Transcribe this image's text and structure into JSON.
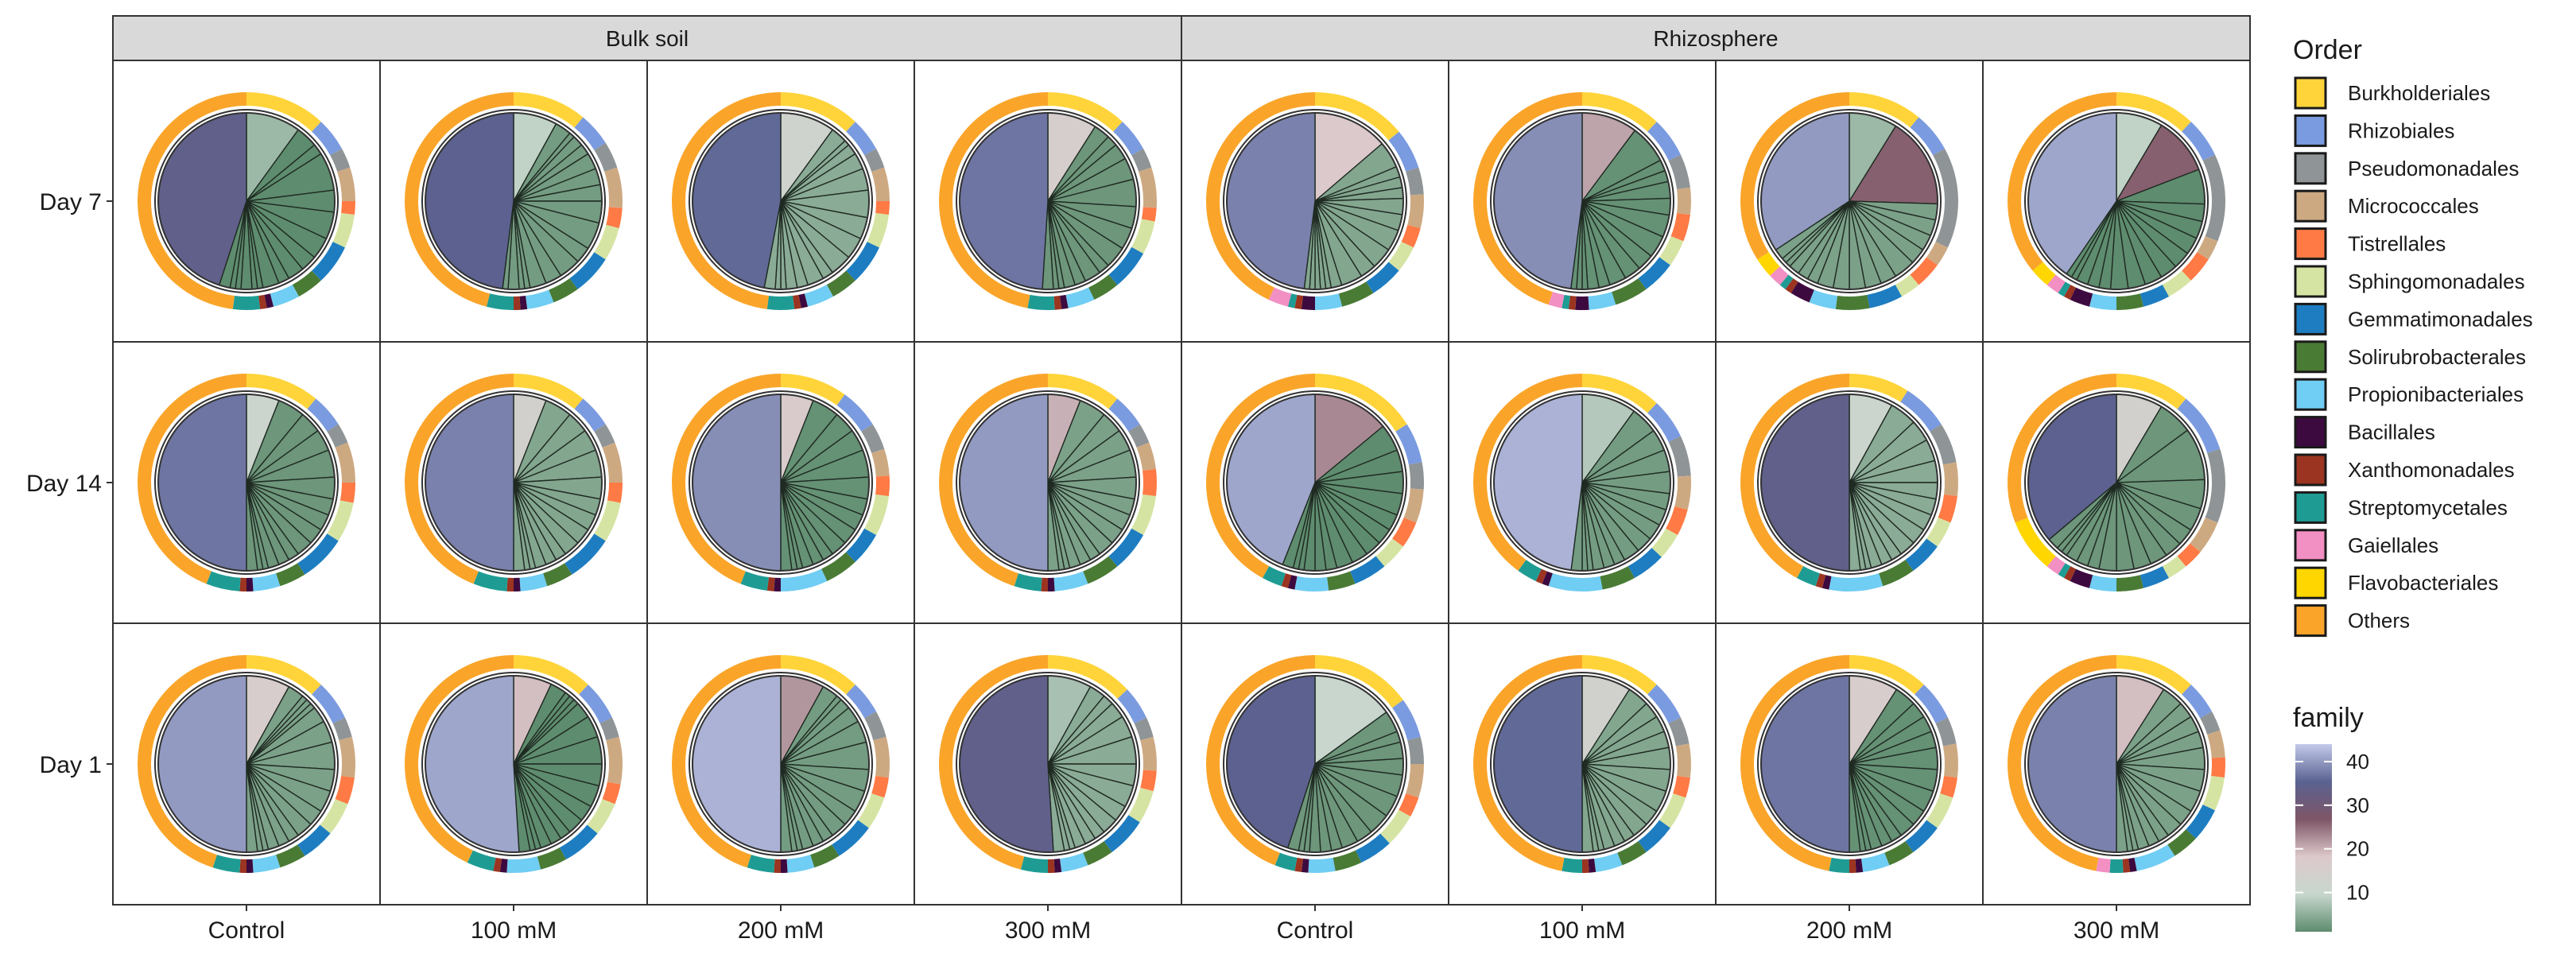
{
  "chart_data": {
    "type": "pie",
    "facets": {
      "columns": [
        "Control",
        "100 mM",
        "200 mM",
        "300 mM",
        "Control",
        "100 mM",
        "200 mM",
        "300 mM"
      ],
      "column_groups": [
        {
          "label": "Bulk soil",
          "span": 4
        },
        {
          "label": "Rhizosphere",
          "span": 4
        }
      ],
      "rows": [
        "Day 7",
        "Day 14",
        "Day 1"
      ]
    },
    "order_legend": {
      "title": "Order",
      "items": [
        {
          "label": "Burkholderiales",
          "color": "#FFD43A"
        },
        {
          "label": "Rhizobiales",
          "color": "#7B9BE0"
        },
        {
          "label": "Pseudomonadales",
          "color": "#8F9496"
        },
        {
          "label": "Micrococcales",
          "color": "#CDA982"
        },
        {
          "label": "Tistrellales",
          "color": "#FF7A45"
        },
        {
          "label": "Sphingomonadales",
          "color": "#D6E4A3"
        },
        {
          "label": "Gemmatimonadales",
          "color": "#1E7DC1"
        },
        {
          "label": "Solirubrobacterales",
          "color": "#4A7B35"
        },
        {
          "label": "Propionibacteriales",
          "color": "#70CDF3"
        },
        {
          "label": "Bacillales",
          "color": "#3D0A3F"
        },
        {
          "label": "Xanthomonadales",
          "color": "#9B3420"
        },
        {
          "label": "Streptomycetales",
          "color": "#1E9C94"
        },
        {
          "label": "Gaiellales",
          "color": "#F28FC3"
        },
        {
          "label": "Flavobacteriales",
          "color": "#FFD600"
        },
        {
          "label": "Others",
          "color": "#FAA52A"
        }
      ]
    },
    "family_scale": {
      "title": "family",
      "ticks": [
        40,
        30,
        20,
        10
      ],
      "range": [
        1,
        44
      ],
      "colors": [
        "#5E8C6E",
        "#C8D7CE",
        "#DCC9CB",
        "#7E5566",
        "#5A6291",
        "#C3CAEA"
      ]
    },
    "panels": [
      {
        "row": 0,
        "col": 0,
        "outer": [
          12,
          5,
          3,
          5,
          2,
          5,
          6,
          4,
          4,
          1,
          1,
          4,
          48
        ],
        "inner": [
          10,
          4,
          2,
          7,
          4,
          5,
          4,
          3,
          3,
          2,
          3,
          1,
          1,
          2,
          1,
          1,
          2,
          45
        ]
      },
      {
        "row": 0,
        "col": 1,
        "outer": [
          11,
          5,
          4,
          6,
          3,
          5,
          6,
          4,
          4,
          1,
          1,
          4,
          46
        ],
        "inner": [
          8,
          3,
          1,
          2,
          2,
          3,
          3,
          3,
          4,
          5,
          3,
          4,
          3,
          3,
          1,
          1,
          2,
          1,
          48
        ]
      },
      {
        "row": 0,
        "col": 2,
        "outer": [
          12,
          5,
          3,
          5,
          2,
          5,
          6,
          4,
          4,
          1,
          1,
          4,
          48
        ],
        "inner": [
          10,
          3,
          1,
          2,
          3,
          4,
          5,
          4,
          4,
          4,
          2,
          3,
          2,
          2,
          1,
          1,
          2,
          47
        ]
      },
      {
        "row": 0,
        "col": 3,
        "outer": [
          12,
          5,
          3,
          6,
          2,
          5,
          6,
          4,
          4,
          1,
          1,
          4,
          47
        ],
        "inner": [
          9,
          3,
          2,
          3,
          4,
          5,
          4,
          4,
          4,
          2,
          3,
          2,
          2,
          1,
          1,
          2,
          49
        ]
      },
      {
        "row": 0,
        "col": 4,
        "outer": [
          14,
          6,
          4,
          5,
          3,
          4,
          5,
          5,
          4,
          2,
          1,
          1,
          3,
          43
        ],
        "inner": [
          14,
          5,
          2,
          2,
          2,
          3,
          3,
          4,
          4,
          3,
          4,
          2,
          1,
          1,
          1,
          1,
          1,
          49
        ]
      },
      {
        "row": 0,
        "col": 5,
        "outer": [
          12,
          6,
          5,
          4,
          4,
          4,
          5,
          5,
          4,
          2,
          1,
          1,
          2,
          45
        ],
        "inner": [
          10,
          7,
          2,
          2,
          3,
          3,
          4,
          4,
          3,
          3,
          3,
          2,
          2,
          1,
          1,
          1,
          47
        ]
      },
      {
        "row": 0,
        "col": 6,
        "outer": [
          11,
          6,
          15,
          3,
          4,
          3,
          5,
          5,
          4,
          3,
          1,
          1,
          2,
          3,
          34
        ],
        "inner": [
          9,
          17,
          3,
          3,
          3,
          3,
          4,
          3,
          3,
          3,
          3,
          3,
          2,
          2,
          2,
          1,
          1,
          2,
          35
        ]
      },
      {
        "row": 0,
        "col": 7,
        "outer": [
          12,
          6,
          13,
          3,
          4,
          4,
          4,
          4,
          4,
          3,
          1,
          1,
          2,
          3,
          36
        ],
        "inner": [
          8,
          10,
          6,
          3,
          3,
          3,
          3,
          3,
          3,
          3,
          3,
          2,
          2,
          2,
          1,
          1,
          38
        ]
      },
      {
        "row": 1,
        "col": 0,
        "outer": [
          11,
          5,
          3,
          6,
          3,
          6,
          7,
          4,
          4,
          1,
          1,
          5,
          44
        ],
        "inner": [
          6,
          5,
          4,
          4,
          5,
          4,
          3,
          3,
          3,
          3,
          2,
          2,
          2,
          1,
          1,
          2,
          50
        ]
      },
      {
        "row": 1,
        "col": 1,
        "outer": [
          11,
          5,
          3,
          6,
          3,
          6,
          7,
          4,
          4,
          1,
          1,
          5,
          44
        ],
        "inner": [
          6,
          5,
          4,
          4,
          5,
          4,
          3,
          3,
          3,
          3,
          2,
          2,
          2,
          1,
          1,
          2,
          50
        ]
      },
      {
        "row": 1,
        "col": 2,
        "outer": [
          10,
          6,
          4,
          4,
          3,
          6,
          5,
          5,
          7,
          1,
          1,
          4,
          44
        ],
        "inner": [
          6,
          5,
          4,
          4,
          5,
          4,
          3,
          3,
          3,
          3,
          2,
          2,
          2,
          1,
          1,
          2,
          50
        ]
      },
      {
        "row": 1,
        "col": 3,
        "outer": [
          11,
          5,
          3,
          4,
          4,
          6,
          6,
          5,
          5,
          1,
          1,
          4,
          45
        ],
        "inner": [
          6,
          5,
          4,
          4,
          5,
          4,
          3,
          3,
          3,
          3,
          2,
          2,
          2,
          1,
          1,
          2,
          50
        ]
      },
      {
        "row": 1,
        "col": 4,
        "outer": [
          16,
          6,
          4,
          5,
          4,
          4,
          5,
          4,
          5,
          1,
          1,
          3,
          42
        ],
        "inner": [
          14,
          5,
          4,
          4,
          4,
          3,
          3,
          3,
          3,
          3,
          2,
          2,
          2,
          1,
          1,
          2,
          44
        ]
      },
      {
        "row": 1,
        "col": 5,
        "outer": [
          12,
          6,
          6,
          5,
          4,
          4,
          5,
          5,
          8,
          1,
          1,
          3,
          40
        ],
        "inner": [
          10,
          5,
          4,
          4,
          4,
          3,
          3,
          3,
          3,
          3,
          2,
          2,
          2,
          1,
          1,
          2,
          48
        ]
      },
      {
        "row": 1,
        "col": 6,
        "outer": [
          9,
          7,
          6,
          5,
          4,
          4,
          5,
          5,
          8,
          1,
          1,
          3,
          42
        ],
        "inner": [
          8,
          5,
          4,
          4,
          4,
          3,
          3,
          3,
          3,
          3,
          2,
          2,
          2,
          1,
          1,
          2,
          50
        ]
      },
      {
        "row": 1,
        "col": 7,
        "outer": [
          11,
          9,
          11,
          5,
          3,
          3,
          4,
          4,
          4,
          3,
          1,
          1,
          2,
          8,
          31
        ],
        "inner": [
          8,
          6,
          9,
          5,
          4,
          3,
          3,
          3,
          3,
          3,
          3,
          2,
          2,
          2,
          1,
          1,
          2,
          34
        ]
      },
      {
        "row": 2,
        "col": 0,
        "outer": [
          12,
          6,
          3,
          6,
          4,
          5,
          5,
          4,
          4,
          1,
          1,
          4,
          45
        ],
        "inner": [
          8,
          3,
          1,
          1,
          1,
          3,
          4,
          5,
          4,
          4,
          3,
          3,
          2,
          2,
          2,
          1,
          1,
          2,
          50
        ]
      },
      {
        "row": 2,
        "col": 1,
        "outer": [
          12,
          6,
          3,
          7,
          3,
          5,
          6,
          4,
          5,
          1,
          1,
          4,
          43
        ],
        "inner": [
          7,
          3,
          1,
          1,
          1,
          3,
          4,
          5,
          4,
          4,
          3,
          3,
          2,
          2,
          2,
          1,
          1,
          2,
          51
        ]
      },
      {
        "row": 2,
        "col": 2,
        "outer": [
          12,
          5,
          4,
          6,
          3,
          5,
          6,
          4,
          4,
          1,
          1,
          4,
          45
        ],
        "inner": [
          8,
          3,
          1,
          2,
          3,
          4,
          5,
          4,
          4,
          3,
          3,
          2,
          2,
          2,
          1,
          1,
          2,
          50
        ]
      },
      {
        "row": 2,
        "col": 3,
        "outer": [
          13,
          5,
          3,
          5,
          3,
          5,
          6,
          4,
          4,
          1,
          1,
          4,
          46
        ],
        "inner": [
          8,
          3,
          2,
          3,
          4,
          5,
          4,
          4,
          3,
          3,
          2,
          2,
          2,
          1,
          1,
          2,
          51
        ]
      },
      {
        "row": 2,
        "col": 4,
        "outer": [
          15,
          6,
          4,
          5,
          3,
          5,
          5,
          4,
          4,
          1,
          1,
          3,
          44
        ],
        "inner": [
          15,
          4,
          2,
          3,
          3,
          4,
          4,
          4,
          3,
          3,
          2,
          2,
          2,
          1,
          1,
          2,
          45
        ]
      },
      {
        "row": 2,
        "col": 5,
        "outer": [
          12,
          6,
          4,
          5,
          3,
          5,
          5,
          4,
          4,
          1,
          1,
          3,
          47
        ],
        "inner": [
          9,
          4,
          3,
          3,
          3,
          4,
          4,
          4,
          3,
          3,
          2,
          2,
          2,
          1,
          1,
          2,
          50
        ]
      },
      {
        "row": 2,
        "col": 6,
        "outer": [
          12,
          6,
          4,
          5,
          3,
          5,
          5,
          4,
          4,
          1,
          1,
          3,
          47
        ],
        "inner": [
          9,
          4,
          3,
          3,
          3,
          4,
          4,
          4,
          3,
          3,
          2,
          2,
          2,
          1,
          1,
          2,
          50
        ]
      },
      {
        "row": 2,
        "col": 7,
        "outer": [
          12,
          5,
          3,
          4,
          3,
          5,
          5,
          4,
          6,
          1,
          1,
          2,
          2,
          47
        ],
        "inner": [
          9,
          4,
          3,
          3,
          3,
          4,
          4,
          4,
          3,
          3,
          2,
          2,
          2,
          1,
          1,
          2,
          50
        ]
      }
    ]
  }
}
